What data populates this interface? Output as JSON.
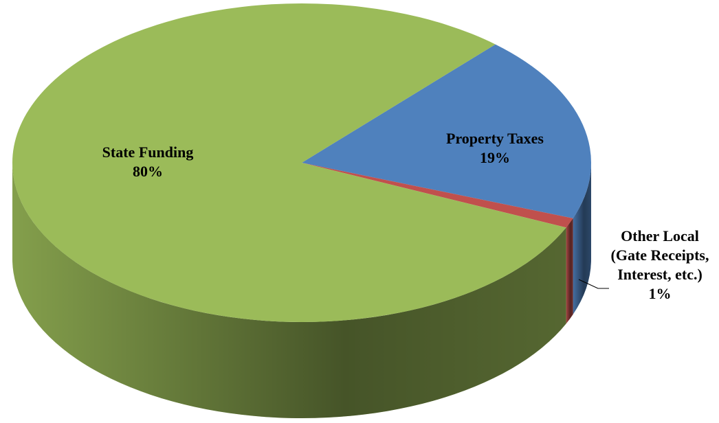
{
  "chart_data": {
    "type": "pie",
    "categories": [
      "Property Taxes",
      "Other Local (Gate Receipts, Interest, etc.)",
      "State Funding"
    ],
    "values": [
      19,
      1,
      80
    ],
    "value_labels": [
      "19%",
      "1%",
      "80%"
    ],
    "colors": [
      "#4f81bd",
      "#c0504d",
      "#9bbb59"
    ]
  }
}
